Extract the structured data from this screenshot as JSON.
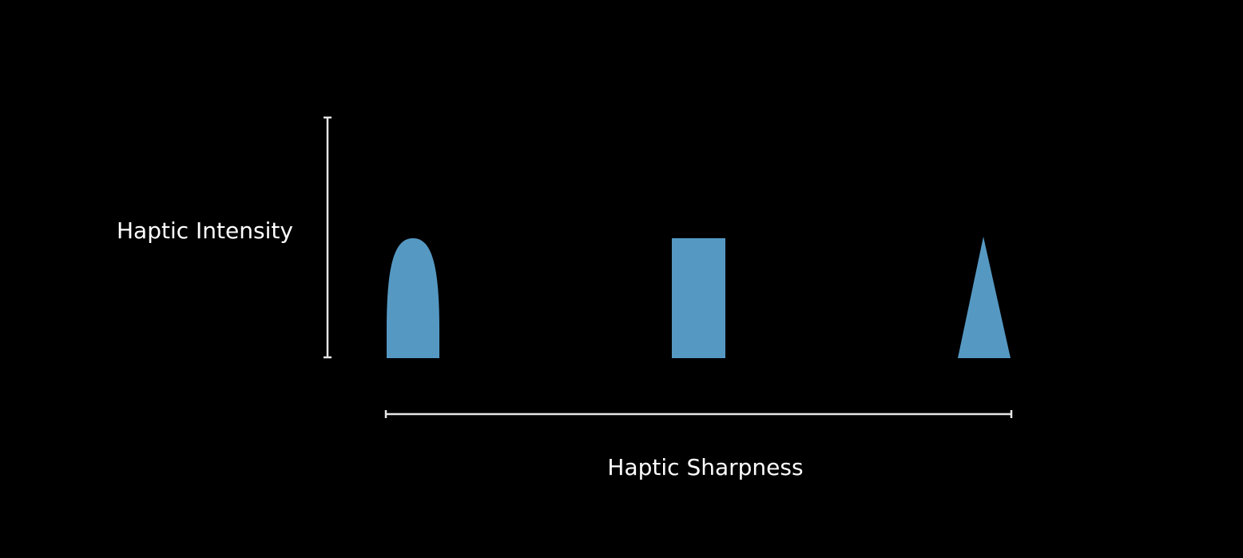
{
  "labels": {
    "intensity_axis": "Haptic Intensity",
    "sharpness_axis": "Haptic Sharpness"
  },
  "colors": {
    "background": "#000000",
    "shape_fill": "#5599c3",
    "axis": "#e6e6e6",
    "text": "#ffffff"
  },
  "shapes": [
    {
      "name": "rounded-waveform",
      "kind": "rounded"
    },
    {
      "name": "rectangular-waveform",
      "kind": "rectangle"
    },
    {
      "name": "triangular-waveform",
      "kind": "triangle"
    }
  ]
}
